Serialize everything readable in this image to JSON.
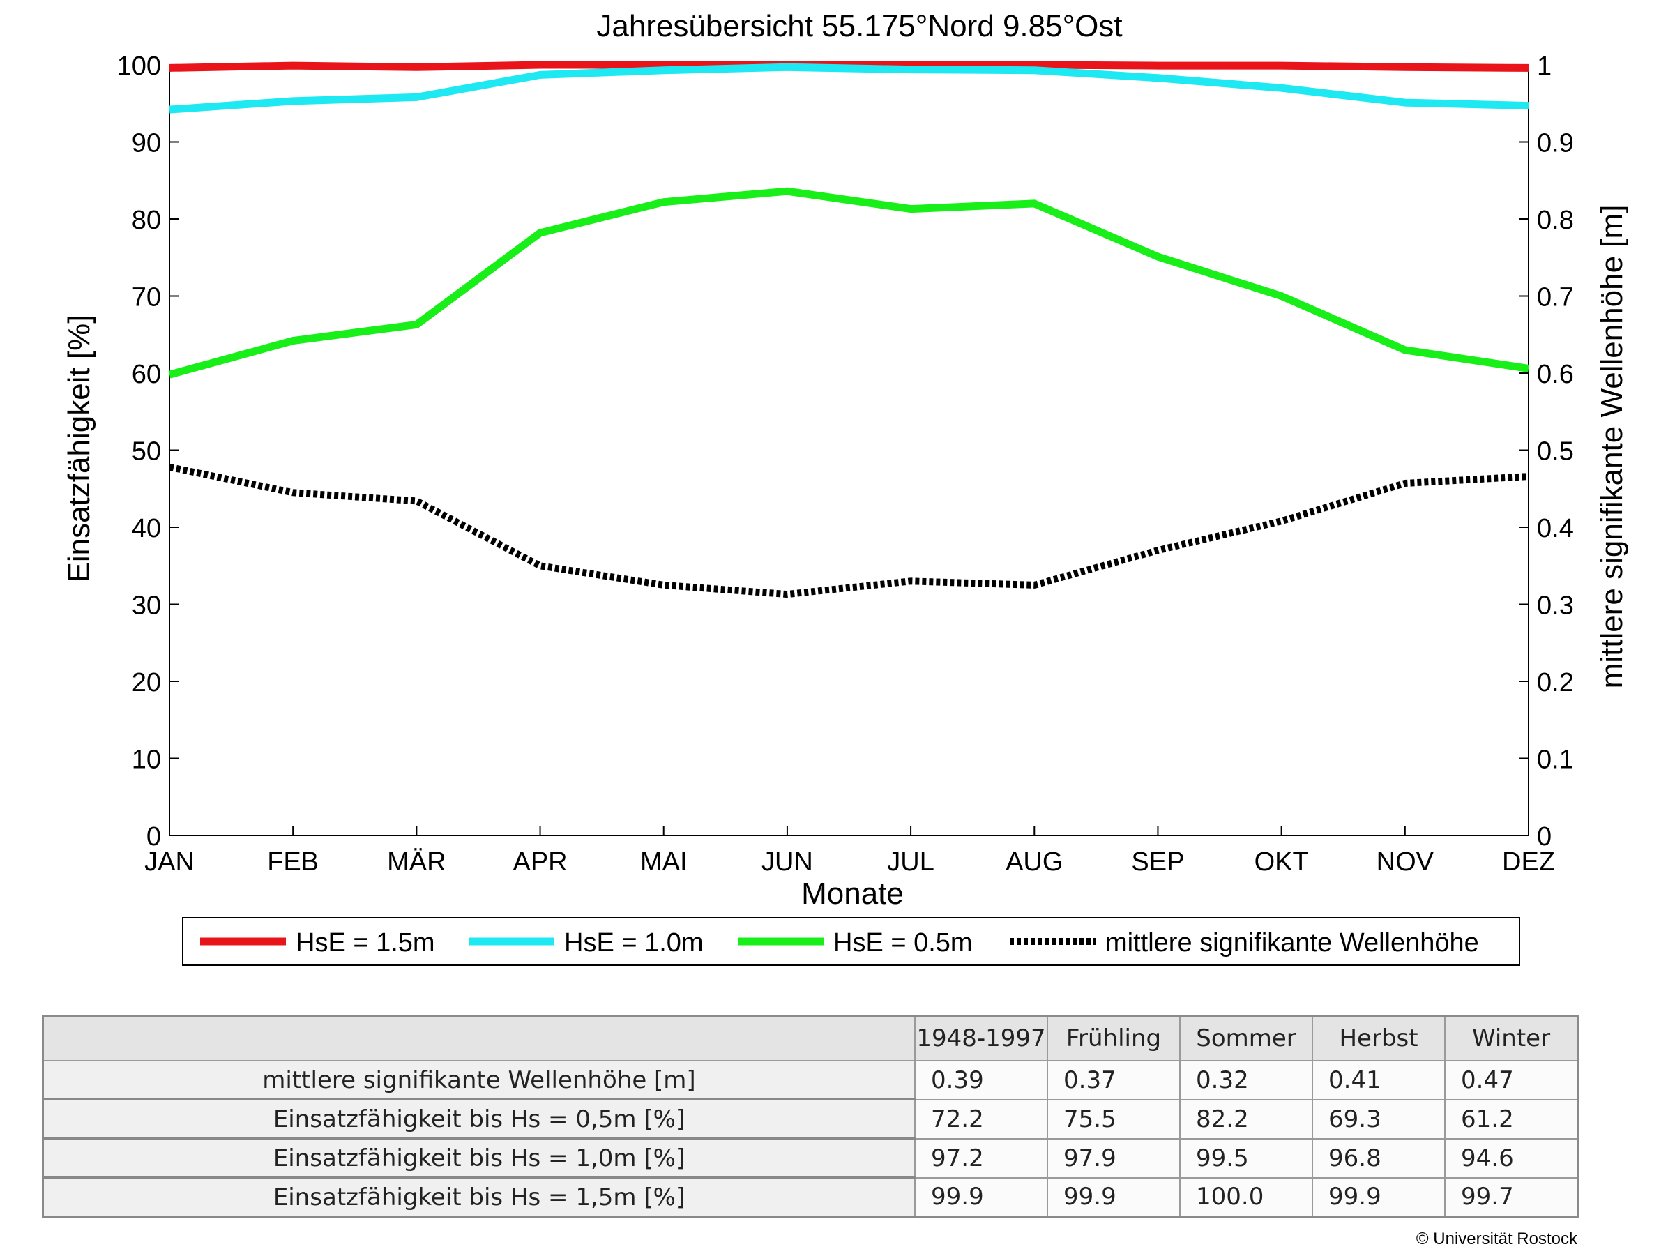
{
  "chart_data": {
    "type": "line",
    "title": "Jahresübersicht  55.175°Nord  9.85°Ost",
    "xlabel": "Monate",
    "ylabel": "Einsatzfähigkeit [%]",
    "y2label": "mittlere signifikante Wellenhöhe [m]",
    "categories": [
      "JAN",
      "FEB",
      "MÄR",
      "APR",
      "MAI",
      "JUN",
      "JUL",
      "AUG",
      "SEP",
      "OKT",
      "NOV",
      "DEZ"
    ],
    "ylim": [
      0,
      100
    ],
    "y2lim": [
      0,
      1
    ],
    "yticks": [
      "0",
      "10",
      "20",
      "30",
      "40",
      "50",
      "60",
      "70",
      "80",
      "90",
      "100"
    ],
    "y2ticks": [
      "0",
      "0.1",
      "0.2",
      "0.3",
      "0.4",
      "0.5",
      "0.6",
      "0.7",
      "0.8",
      "0.9",
      "1"
    ],
    "grid": false,
    "legend_position": "bottom",
    "series": [
      {
        "name": "HsE = 1.5m",
        "color": "#e8141a",
        "axis": "left",
        "style": "solid",
        "values": [
          99.6,
          99.9,
          99.7,
          100.0,
          100.0,
          100.0,
          100.0,
          100.0,
          99.9,
          99.9,
          99.7,
          99.6
        ]
      },
      {
        "name": "HsE = 1.0m",
        "color": "#1ee8f2",
        "axis": "left",
        "style": "solid",
        "values": [
          94.2,
          95.3,
          95.8,
          98.7,
          99.3,
          99.7,
          99.4,
          99.3,
          98.3,
          97.0,
          95.1,
          94.7
        ]
      },
      {
        "name": "HsE = 0.5m",
        "color": "#18ee18",
        "axis": "left",
        "style": "solid",
        "values": [
          59.8,
          64.2,
          66.3,
          78.2,
          82.2,
          83.6,
          81.3,
          82.0,
          75.1,
          70.0,
          63.0,
          60.6
        ]
      },
      {
        "name": "mittlere signifikante Wellenhöhe",
        "color": "#000000",
        "axis": "right",
        "style": "dotted",
        "values": [
          0.478,
          0.445,
          0.434,
          0.35,
          0.325,
          0.313,
          0.33,
          0.325,
          0.37,
          0.408,
          0.457,
          0.466
        ]
      }
    ]
  },
  "table": {
    "headers": [
      "1948-1997",
      "Frühling",
      "Sommer",
      "Herbst",
      "Winter"
    ],
    "rows": [
      {
        "label": "mittlere signifikante Wellenhöhe [m]",
        "values": [
          "0.39",
          "0.37",
          "0.32",
          "0.41",
          "0.47"
        ]
      },
      {
        "label": "Einsatzfähigkeit bis Hs = 0,5m [%]",
        "values": [
          "72.2",
          "75.5",
          "82.2",
          "69.3",
          "61.2"
        ]
      },
      {
        "label": "Einsatzfähigkeit bis Hs = 1,0m [%]",
        "values": [
          "97.2",
          "97.9",
          "99.5",
          "96.8",
          "94.6"
        ]
      },
      {
        "label": "Einsatzfähigkeit bis Hs = 1,5m [%]",
        "values": [
          "99.9",
          "99.9",
          "100.0",
          "99.9",
          "99.7"
        ]
      }
    ]
  },
  "footer": {
    "copyright": "© Universität Rostock"
  }
}
